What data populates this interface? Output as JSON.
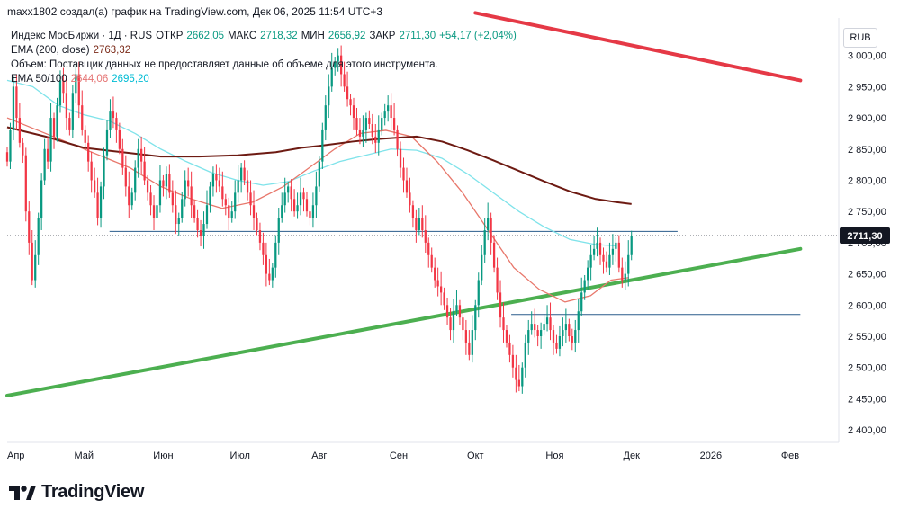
{
  "header": {
    "caption": "maxx1802 создал(а) график на TradingView.com, Дек 06, 2025 11:54 UTC+3"
  },
  "legend": {
    "symbol": "Индекс МосБиржи · 1Д · RUS",
    "open_label": "ОТКР",
    "open": "2662,05",
    "high_label": "МАКС",
    "high": "2718,32",
    "low_label": "МИН",
    "low": "2656,92",
    "close_label": "ЗАКР",
    "close": "2711,30",
    "change": "+54,17 (+2,04%)",
    "ema200_label": "EMA (200, close)",
    "ema200_value": "2763,32",
    "volume_text": "Объем: Поставщик данных не предоставляет данные об объеме для этого инструмента.",
    "ema_pair_label": "EMA 50/100",
    "ema50_value": "2644,06",
    "ema100_value": "2695,20"
  },
  "currency": "RUB",
  "last_price_label": "2711,30",
  "footer": {
    "brand": "TradingView"
  },
  "colors": {
    "up": "#089981",
    "down": "#f23645",
    "ema200": "#6d1a12",
    "ema100": "#7fe3ea",
    "ema50": "#e8776b",
    "trend_green": "#4caf50",
    "trend_red": "#e53946",
    "level": "#2a5b8c"
  },
  "chart_data": {
    "type": "candlestick",
    "title": "Индекс МосБиржи · 1Д",
    "ylim": [
      2380,
      3060
    ],
    "y_ticks": [
      2400,
      2450,
      2500,
      2550,
      2600,
      2650,
      2700,
      2750,
      2800,
      2850,
      2900,
      2950,
      3000
    ],
    "y_tick_labels": [
      "2 400,00",
      "2 450,00",
      "2 500,00",
      "2 550,00",
      "2 600,00",
      "2 650,00",
      "2 700,00",
      "2 750,00",
      "2 800,00",
      "2 850,00",
      "2 900,00",
      "2 950,00",
      "3 000,00"
    ],
    "x_range_days": [
      0,
      325
    ],
    "x_ticks": [
      {
        "day": 0,
        "label": "Апр"
      },
      {
        "day": 30,
        "label": "Май"
      },
      {
        "day": 61,
        "label": "Июн"
      },
      {
        "day": 91,
        "label": "Июл"
      },
      {
        "day": 122,
        "label": "Авг"
      },
      {
        "day": 153,
        "label": "Сен"
      },
      {
        "day": 183,
        "label": "Окт"
      },
      {
        "day": 214,
        "label": "Ноя"
      },
      {
        "day": 244,
        "label": "Дек"
      },
      {
        "day": 275,
        "label": "2026"
      },
      {
        "day": 306,
        "label": "Фев"
      }
    ],
    "closes": [
      2830,
      2880,
      2950,
      2900,
      2860,
      2840,
      2750,
      2700,
      2640,
      2680,
      2740,
      2800,
      2850,
      2830,
      2900,
      2870,
      2920,
      2960,
      2940,
      2900,
      2880,
      2940,
      2970,
      2920,
      2880,
      2860,
      2830,
      2800,
      2780,
      2740,
      2790,
      2840,
      2880,
      2910,
      2900,
      2880,
      2850,
      2820,
      2790,
      2760,
      2780,
      2820,
      2850,
      2830,
      2800,
      2780,
      2760,
      2740,
      2760,
      2800,
      2790,
      2810,
      2780,
      2760,
      2730,
      2740,
      2770,
      2800,
      2790,
      2760,
      2740,
      2720,
      2710,
      2730,
      2760,
      2790,
      2810,
      2800,
      2790,
      2770,
      2760,
      2740,
      2750,
      2780,
      2800,
      2820,
      2800,
      2780,
      2760,
      2740,
      2720,
      2700,
      2680,
      2650,
      2640,
      2660,
      2700,
      2740,
      2760,
      2780,
      2790,
      2770,
      2750,
      2760,
      2780,
      2770,
      2750,
      2740,
      2760,
      2790,
      2830,
      2880,
      2920,
      2950,
      2980,
      2990,
      3000,
      2970,
      2950,
      2930,
      2920,
      2900,
      2880,
      2870,
      2880,
      2900,
      2890,
      2870,
      2860,
      2880,
      2900,
      2910,
      2920,
      2900,
      2880,
      2850,
      2820,
      2800,
      2780,
      2760,
      2740,
      2720,
      2740,
      2720,
      2700,
      2680,
      2660,
      2640,
      2630,
      2620,
      2600,
      2580,
      2560,
      2590,
      2600,
      2580,
      2560,
      2540,
      2520,
      2560,
      2600,
      2640,
      2680,
      2720,
      2740,
      2700,
      2660,
      2620,
      2580,
      2560,
      2540,
      2520,
      2500,
      2480,
      2470,
      2500,
      2540,
      2560,
      2570,
      2560,
      2550,
      2560,
      2570,
      2580,
      2560,
      2540,
      2530,
      2550,
      2560,
      2570,
      2550,
      2540,
      2560,
      2590,
      2620,
      2640,
      2660,
      2680,
      2690,
      2700,
      2680,
      2670,
      2660,
      2680,
      2690,
      2700,
      2660,
      2640,
      2650,
      2680,
      2711
    ],
    "ema200": [
      [
        0,
        2885
      ],
      [
        15,
        2870
      ],
      [
        30,
        2852
      ],
      [
        45,
        2845
      ],
      [
        60,
        2838
      ],
      [
        75,
        2838
      ],
      [
        90,
        2840
      ],
      [
        105,
        2845
      ],
      [
        115,
        2852
      ],
      [
        122,
        2855
      ],
      [
        135,
        2862
      ],
      [
        145,
        2866
      ],
      [
        152,
        2868
      ],
      [
        160,
        2870
      ],
      [
        170,
        2862
      ],
      [
        180,
        2848
      ],
      [
        190,
        2832
      ],
      [
        200,
        2815
      ],
      [
        210,
        2798
      ],
      [
        220,
        2782
      ],
      [
        230,
        2770
      ],
      [
        238,
        2765
      ],
      [
        244,
        2762
      ]
    ],
    "ema100": [
      [
        0,
        2960
      ],
      [
        10,
        2950
      ],
      [
        20,
        2920
      ],
      [
        30,
        2905
      ],
      [
        40,
        2895
      ],
      [
        50,
        2875
      ],
      [
        60,
        2850
      ],
      [
        70,
        2830
      ],
      [
        80,
        2812
      ],
      [
        90,
        2800
      ],
      [
        100,
        2792
      ],
      [
        110,
        2798
      ],
      [
        120,
        2815
      ],
      [
        130,
        2830
      ],
      [
        140,
        2840
      ],
      [
        150,
        2850
      ],
      [
        160,
        2848
      ],
      [
        170,
        2835
      ],
      [
        180,
        2810
      ],
      [
        190,
        2780
      ],
      [
        200,
        2750
      ],
      [
        210,
        2725
      ],
      [
        220,
        2705
      ],
      [
        230,
        2697
      ],
      [
        238,
        2695
      ]
    ],
    "ema50": [
      [
        0,
        2900
      ],
      [
        12,
        2880
      ],
      [
        24,
        2860
      ],
      [
        36,
        2840
      ],
      [
        48,
        2820
      ],
      [
        60,
        2790
      ],
      [
        72,
        2770
      ],
      [
        84,
        2755
      ],
      [
        96,
        2765
      ],
      [
        108,
        2790
      ],
      [
        118,
        2820
      ],
      [
        128,
        2850
      ],
      [
        138,
        2875
      ],
      [
        148,
        2880
      ],
      [
        158,
        2870
      ],
      [
        168,
        2830
      ],
      [
        178,
        2780
      ],
      [
        188,
        2720
      ],
      [
        198,
        2660
      ],
      [
        208,
        2625
      ],
      [
        218,
        2605
      ],
      [
        228,
        2615
      ],
      [
        236,
        2640
      ],
      [
        243,
        2644
      ]
    ],
    "trend_green": [
      [
        0,
        2455
      ],
      [
        310,
        2690
      ]
    ],
    "trend_red": [
      [
        183,
        3068
      ],
      [
        310,
        2960
      ]
    ],
    "level_upper": {
      "value": 2718,
      "from_day": 40,
      "to_day": 262
    },
    "level_lower": {
      "value": 2585,
      "from_day": 197,
      "to_day": 310
    },
    "last_price": 2711.3
  }
}
